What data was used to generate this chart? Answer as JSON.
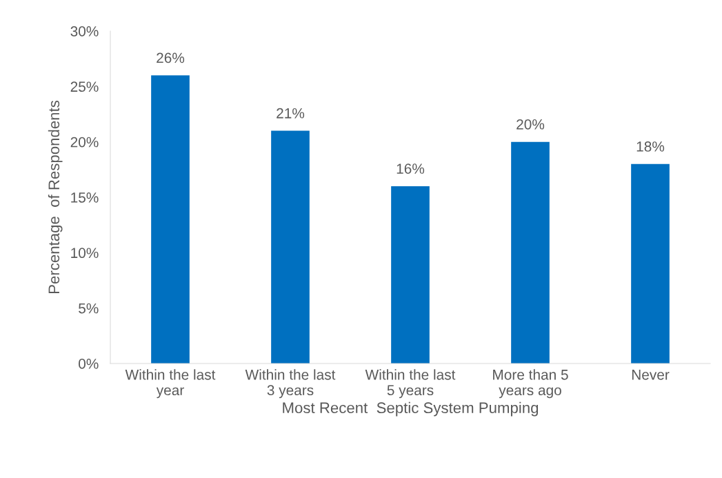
{
  "chart_data": {
    "type": "bar",
    "xlabel": "Most Recent  Septic System Pumping",
    "ylabel": "Percentage  of Respondents",
    "categories": [
      "Within the last\nyear",
      "Within the last\n3 years",
      "Within the last\n5 years",
      "More than 5\nyears ago",
      "Never"
    ],
    "values": [
      26,
      21,
      16,
      20,
      18
    ],
    "color": "#0070c0",
    "data_labels": true,
    "value_labels": [
      "26%",
      "21%",
      "16%",
      "20%",
      "18%"
    ],
    "ylim": [
      0,
      30
    ],
    "yticks": [
      {
        "value": 0,
        "label": "0%"
      },
      {
        "value": 5,
        "label": "5%"
      },
      {
        "value": 10,
        "label": "10%"
      },
      {
        "value": 15,
        "label": "15%"
      },
      {
        "value": 20,
        "label": "20%"
      },
      {
        "value": 25,
        "label": "25%"
      },
      {
        "value": 30,
        "label": "30%"
      }
    ],
    "grid": false,
    "legend": false
  }
}
